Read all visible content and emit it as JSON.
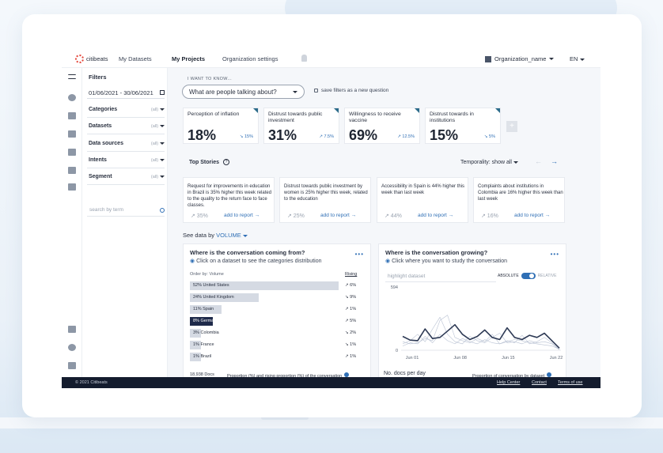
{
  "nav": {
    "logo": "citibeats",
    "links": [
      "My Datasets",
      "My Projects",
      "Organization settings"
    ],
    "active": "My Projects",
    "org": "Organization_name",
    "lang": "EN"
  },
  "filters": {
    "title": "Filters",
    "date_range": "01/06/2021 - 30/06/2021",
    "rows": [
      {
        "label": "Categories",
        "value": "(all)"
      },
      {
        "label": "Datasets",
        "value": "(all)"
      },
      {
        "label": "Data sources",
        "value": "(all)"
      },
      {
        "label": "Intents",
        "value": "(all)"
      },
      {
        "label": "Segment",
        "value": "(all)"
      }
    ],
    "search_placeholder": "search by term"
  },
  "question": {
    "prompt": "I WANT TO KNOW...",
    "selected": "What are people talking about?",
    "save_label": "save filters as a new question"
  },
  "kpis": [
    {
      "title": "Perception of inflation",
      "value": "18%",
      "delta": "↘ 15%"
    },
    {
      "title": "Distrust towards public investment",
      "value": "31%",
      "delta": "↗ 7.5%"
    },
    {
      "title": "Willingness to receive vaccine",
      "value": "69%",
      "delta": "↗ 12.5%"
    },
    {
      "title": "Distrust towards in institutions",
      "value": "15%",
      "delta": "↘ 5%"
    }
  ],
  "add_kpi": "+",
  "top_stories": {
    "title": "Top Stories",
    "temporality": "Temporality: show all",
    "items": [
      {
        "text": "Request for improvements in education in Brazil is 35% higher this week related to the quality to the return face to face classes.",
        "pct": "↗ 35%",
        "action": "add to report →"
      },
      {
        "text": "Distrust towards public investment by women is 25% higher this week, related to the education",
        "pct": "↗ 25%",
        "action": "add to report →"
      },
      {
        "text": "Accessibility in Spain is 44% higher this week than last week",
        "pct": "↗ 44%",
        "action": "add to report →"
      },
      {
        "text": "Complaints about institutions in Colombia are 16% higher this week than last week",
        "pct": "↗ 16%",
        "action": "add to report →"
      }
    ]
  },
  "see_data": {
    "prefix": "See data by",
    "value": "VOLUME"
  },
  "left_panel": {
    "title": "Where is the conversation coming from?",
    "subtitle": "Click on a dataset to see the categories distribution",
    "order_by": "Order by: Volume",
    "rising_label": "Rising",
    "rows": [
      {
        "pct": "52%",
        "name": "United States",
        "share": 52,
        "rising": "↗ 6%",
        "highlight": false
      },
      {
        "pct": "24%",
        "name": "United Kingdom",
        "share": 24,
        "rising": "↘ 9%",
        "highlight": false
      },
      {
        "pct": "11%",
        "name": "Spain",
        "share": 11,
        "rising": "↗ 1%",
        "highlight": false
      },
      {
        "pct": "8%",
        "name": "Germany",
        "share": 8,
        "rising": "↗ 5%",
        "highlight": true
      },
      {
        "pct": "3%",
        "name": "Colombia",
        "share": 3,
        "rising": "↘ 2%",
        "highlight": false
      },
      {
        "pct": "1%",
        "name": "France",
        "share": 1,
        "rising": "↘ 1%",
        "highlight": false
      },
      {
        "pct": "1%",
        "name": "Brazil",
        "share": 1,
        "rising": "↗ 1%",
        "highlight": false
      }
    ],
    "docs": "18,938 Docs",
    "proportion": "Proportion (%) and rising proportion (%) of the conversation"
  },
  "right_panel": {
    "title": "Where is the conversation growing?",
    "subtitle": "Click where you want to study the conversation",
    "highlight_placeholder": "highlight dataset",
    "toggle_on": "ABSOLUTE",
    "toggle_off": "RELATIVE",
    "ndocs": "No. docs per day",
    "proportion": "Proportion of conversation by dataset"
  },
  "chart_data": {
    "type": "line",
    "x_ticks": [
      "Jun 01",
      "Jun 08",
      "Jun 15",
      "Jun 22"
    ],
    "y_ticks": [
      "594",
      "0"
    ],
    "ylim": [
      0,
      594
    ],
    "series": [
      {
        "values": [
          130,
          95,
          90,
          200,
          110,
          120,
          180,
          240,
          150,
          100,
          130,
          190,
          120,
          100,
          210,
          120,
          100,
          140,
          120,
          160,
          90,
          20
        ],
        "emphasis": true
      },
      {
        "values": [
          80,
          60,
          70,
          110,
          90,
          280,
          330,
          120,
          90,
          70,
          110,
          80,
          150,
          60,
          90,
          70,
          140,
          60,
          80,
          120,
          70,
          10
        ]
      },
      {
        "values": [
          60,
          90,
          150,
          80,
          200,
          310,
          150,
          80,
          60,
          130,
          90,
          70,
          120,
          160,
          70,
          80,
          60,
          90,
          70,
          80,
          60,
          5
        ]
      },
      {
        "values": [
          40,
          70,
          60,
          130,
          70,
          150,
          90,
          60,
          110,
          80,
          60,
          100,
          70,
          60,
          80,
          100,
          90,
          70,
          60,
          50,
          40,
          10
        ]
      }
    ],
    "colors": {
      "main": "#2e3a55",
      "faint": "#b9c2d3"
    }
  },
  "footer": {
    "copyright": "© 2021 Citibeats",
    "links": [
      "Help Center",
      "Contact",
      "Terms of use"
    ]
  },
  "colors": {
    "accent": "#2f6fb5",
    "dark": "#1e2a4a",
    "footer": "#141c2e",
    "logo": "#e4473b"
  }
}
